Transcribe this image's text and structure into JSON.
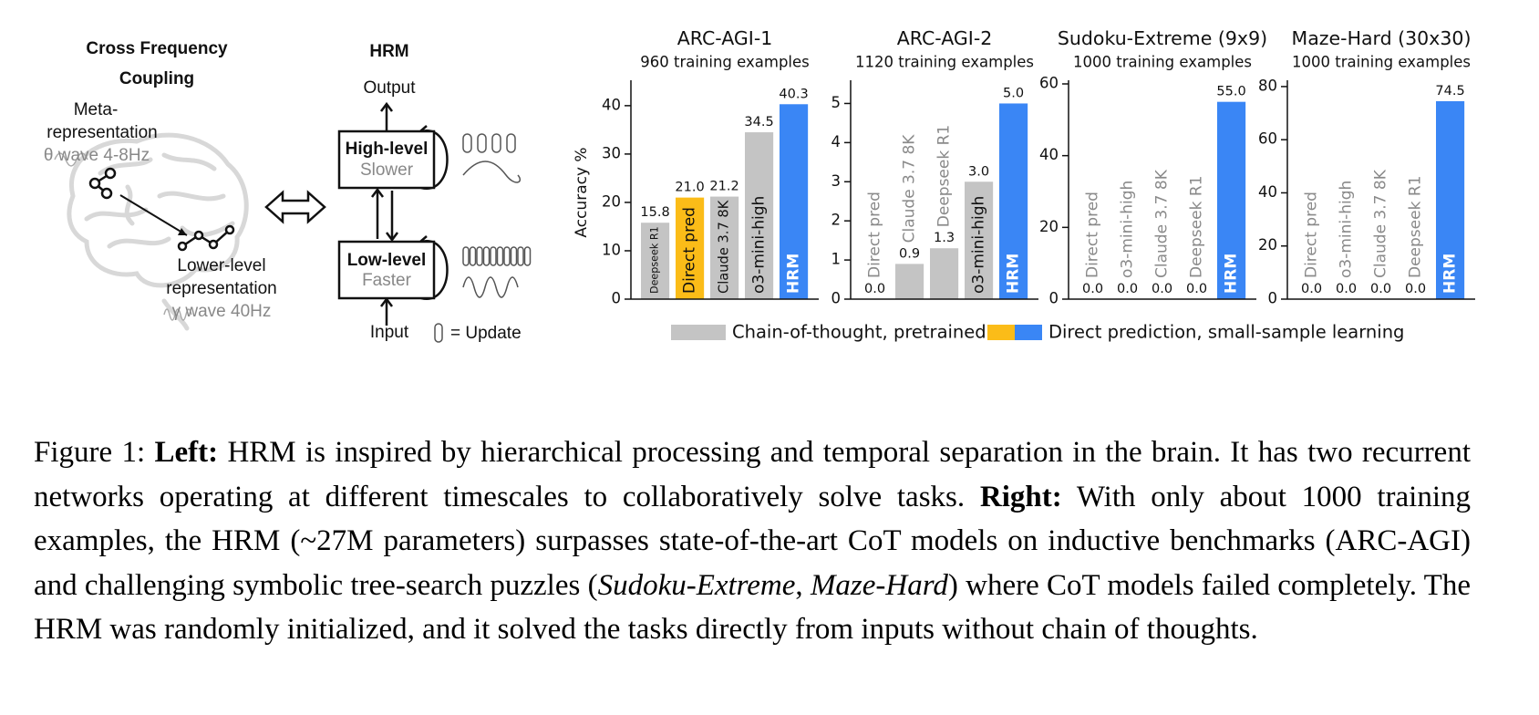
{
  "diagram": {
    "brain_title": [
      "Cross Frequency",
      "Coupling"
    ],
    "meta": [
      "Meta-",
      "representation"
    ],
    "theta": "θ wave 4-8Hz",
    "lower": [
      "Lower-level",
      "representation"
    ],
    "gamma": "γ wave 40Hz",
    "hrm_title": "HRM",
    "output": "Output",
    "high": [
      "High-level",
      "Slower"
    ],
    "low": [
      "Low-level",
      "Faster"
    ],
    "input": "Input",
    "update": "= Update"
  },
  "chart_data": [
    {
      "type": "bar",
      "title": "ARC-AGI-1",
      "subtitle": "960 training examples",
      "ylabel": "Accuracy %",
      "categories": [
        "Deepseek R1",
        "Direct pred",
        "Claude 3.7 8K",
        "o3-mini-high",
        "HRM"
      ],
      "values": [
        15.8,
        21.0,
        21.2,
        34.5,
        40.3
      ],
      "value_labels": [
        "15.8",
        "21.0",
        "21.2",
        "34.5",
        "40.3"
      ],
      "colors": [
        "#c4c4c4",
        "#fbbc18",
        "#c4c4c4",
        "#c4c4c4",
        "#3a86f5"
      ],
      "ylim": [
        0,
        44.5
      ],
      "yticks": [
        0,
        10,
        20,
        30,
        40
      ]
    },
    {
      "type": "bar",
      "title": "ARC-AGI-2",
      "subtitle": "1120 training examples",
      "categories": [
        "Direct pred",
        "Claude 3.7 8K",
        "Deepseek R1",
        "o3-mini-high",
        "HRM"
      ],
      "values": [
        0.0,
        0.9,
        1.3,
        3.0,
        5.0
      ],
      "value_labels": [
        "0.0",
        "0.9",
        "1.3",
        "3.0",
        "5.0"
      ],
      "colors": [
        "#c4c4c4",
        "#c4c4c4",
        "#c4c4c4",
        "#c4c4c4",
        "#3a86f5"
      ],
      "ylim": [
        0,
        5.5
      ],
      "yticks": [
        0,
        1,
        2,
        3,
        4,
        5
      ]
    },
    {
      "type": "bar",
      "title": "Sudoku-Extreme (9x9)",
      "subtitle": "1000 training examples",
      "categories": [
        "Direct pred",
        "o3-mini-high",
        "Claude 3.7 8K",
        "Deepseek R1",
        "HRM"
      ],
      "values": [
        0.0,
        0.0,
        0.0,
        0.0,
        55.0
      ],
      "value_labels": [
        "0.0",
        "0.0",
        "0.0",
        "0.0",
        "55.0"
      ],
      "colors": [
        "#c4c4c4",
        "#c4c4c4",
        "#c4c4c4",
        "#c4c4c4",
        "#3a86f5"
      ],
      "ylim": [
        0,
        60
      ],
      "yticks": [
        0,
        20,
        40,
        60
      ]
    },
    {
      "type": "bar",
      "title": "Maze-Hard (30x30)",
      "subtitle": "1000 training examples",
      "categories": [
        "Direct pred",
        "o3-mini-high",
        "Claude 3.7 8K",
        "Deepseek R1",
        "HRM"
      ],
      "values": [
        0.0,
        0.0,
        0.0,
        0.0,
        74.5
      ],
      "value_labels": [
        "0.0",
        "0.0",
        "0.0",
        "0.0",
        "74.5"
      ],
      "colors": [
        "#c4c4c4",
        "#c4c4c4",
        "#c4c4c4",
        "#c4c4c4",
        "#3a86f5"
      ],
      "ylim": [
        0,
        81
      ],
      "yticks": [
        0,
        20,
        40,
        60,
        80
      ]
    }
  ],
  "legend": {
    "items": [
      {
        "label": "Chain-of-thought, pretrained",
        "colors": [
          "#c4c4c4"
        ]
      },
      {
        "label": "Direct prediction, small-sample learning",
        "colors": [
          "#fbbc18",
          "#3a86f5"
        ]
      }
    ]
  },
  "caption": {
    "segments": [
      {
        "text": "Figure 1: ",
        "style": "normal"
      },
      {
        "text": "Left:",
        "style": "bold"
      },
      {
        "text": " HRM is inspired by hierarchical processing and temporal separation in the brain. It has two recurrent networks operating at different timescales to collaboratively solve tasks. ",
        "style": "normal"
      },
      {
        "text": "Right:",
        "style": "bold"
      },
      {
        "text": " With only about 1000 training examples, the HRM (~27M parameters) surpasses state-of-the-art CoT models on inductive benchmarks (ARC-AGI) and challenging symbolic tree-search puzzles (",
        "style": "normal"
      },
      {
        "text": "Sudoku-Extreme",
        "style": "italic"
      },
      {
        "text": ", ",
        "style": "normal"
      },
      {
        "text": "Maze-Hard",
        "style": "italic"
      },
      {
        "text": ") where CoT models failed completely.  The HRM was randomly initialized, and it solved the tasks directly from inputs without chain of thoughts.",
        "style": "normal"
      }
    ]
  }
}
